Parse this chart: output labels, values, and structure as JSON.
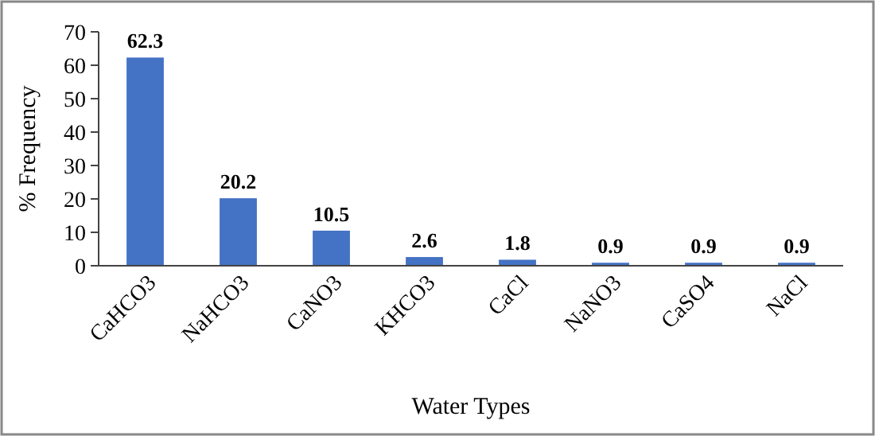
{
  "chart_data": {
    "type": "bar",
    "xlabel": "Water Types",
    "ylabel": "% Frequency",
    "categories": [
      "CaHCO3",
      "NaHCO3",
      "CaNO3",
      "KHCO3",
      "CaCl",
      "NaNO3",
      "CaSO4",
      "NaCl"
    ],
    "values": [
      62.3,
      20.2,
      10.5,
      2.6,
      1.8,
      0.9,
      0.9,
      0.9
    ],
    "color": "#4472c4",
    "ylim": [
      0,
      70
    ],
    "yticks": [
      0,
      10,
      20,
      30,
      40,
      50,
      60,
      70
    ],
    "data_labels": true
  }
}
